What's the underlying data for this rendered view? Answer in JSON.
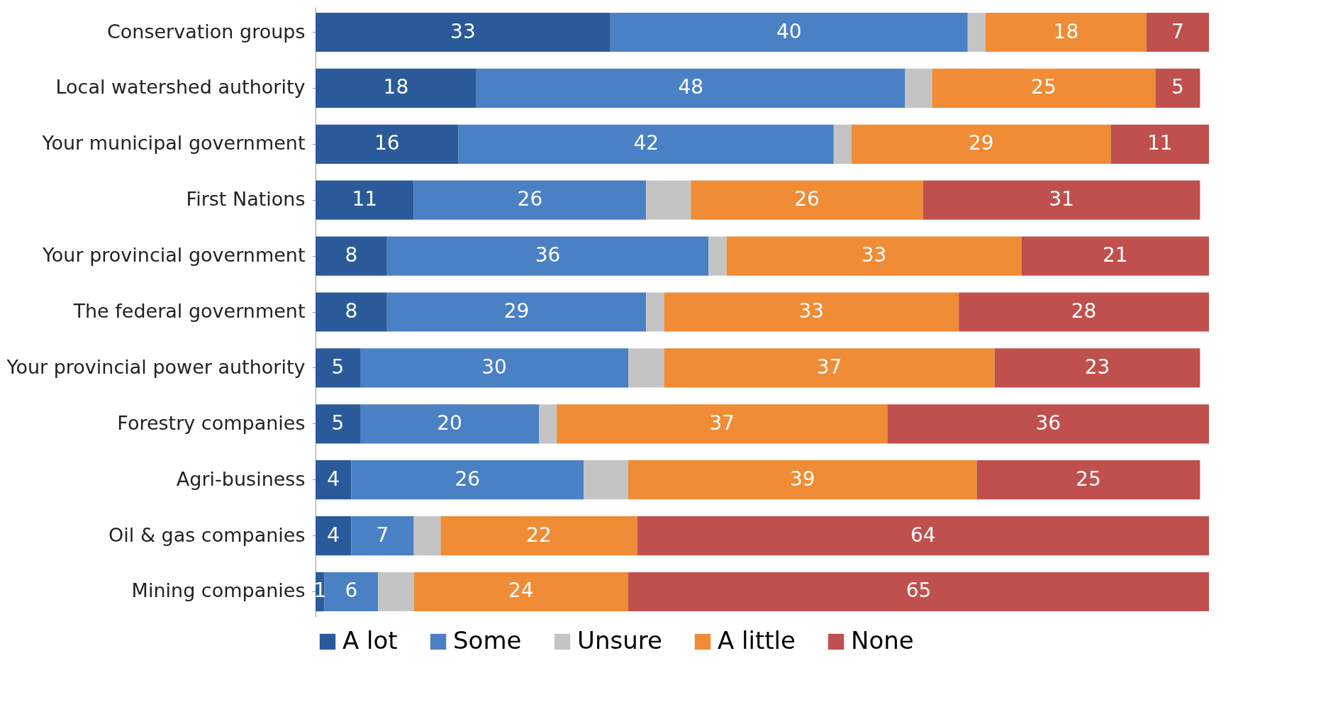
{
  "chart_data": {
    "type": "bar",
    "orientation": "horizontal",
    "stacked": true,
    "categories": [
      "Conservation groups",
      "Local watershed authority",
      "Your municipal government",
      "First Nations",
      "Your provincial government",
      "The federal government",
      "Your provincial power authority",
      "Forestry companies",
      "Agri-business",
      "Oil & gas companies",
      "Mining companies"
    ],
    "series": [
      {
        "name": "A lot",
        "color": "#2a5a9a",
        "values": [
          33,
          18,
          16,
          11,
          8,
          8,
          5,
          5,
          4,
          4,
          1
        ],
        "value_labels": [
          "33",
          "18",
          "16",
          "11",
          "8",
          "8",
          "5",
          "5",
          "4",
          "4",
          "1"
        ]
      },
      {
        "name": "Some",
        "color": "#4a80c4",
        "values": [
          40,
          48,
          42,
          26,
          36,
          29,
          30,
          20,
          26,
          7,
          6
        ],
        "value_labels": [
          "40",
          "48",
          "42",
          "26",
          "36",
          "29",
          "30",
          "20",
          "26",
          "7",
          "6"
        ]
      },
      {
        "name": "Unsure",
        "color": "#c4c4c4",
        "values": [
          2,
          3,
          2,
          5,
          2,
          2,
          4,
          2,
          5,
          3,
          4
        ],
        "value_labels": [
          null,
          null,
          null,
          null,
          null,
          null,
          null,
          null,
          null,
          null,
          null
        ]
      },
      {
        "name": "A little",
        "color": "#ef8c35",
        "values": [
          18,
          25,
          29,
          26,
          33,
          33,
          37,
          37,
          39,
          22,
          24
        ],
        "value_labels": [
          "18",
          "25",
          "29",
          "26",
          "33",
          "33",
          "37",
          "37",
          "39",
          "22",
          "24"
        ]
      },
      {
        "name": "None",
        "color": "#c0504d",
        "values": [
          7,
          5,
          11,
          31,
          21,
          28,
          23,
          36,
          25,
          64,
          65
        ],
        "value_labels": [
          "7",
          "5",
          "11",
          "31",
          "21",
          "28",
          "23",
          "36",
          "25",
          "64",
          "65"
        ]
      }
    ],
    "xlim": [
      0,
      100
    ],
    "tick_labels": "y",
    "grid": false,
    "legend": "bottom"
  }
}
